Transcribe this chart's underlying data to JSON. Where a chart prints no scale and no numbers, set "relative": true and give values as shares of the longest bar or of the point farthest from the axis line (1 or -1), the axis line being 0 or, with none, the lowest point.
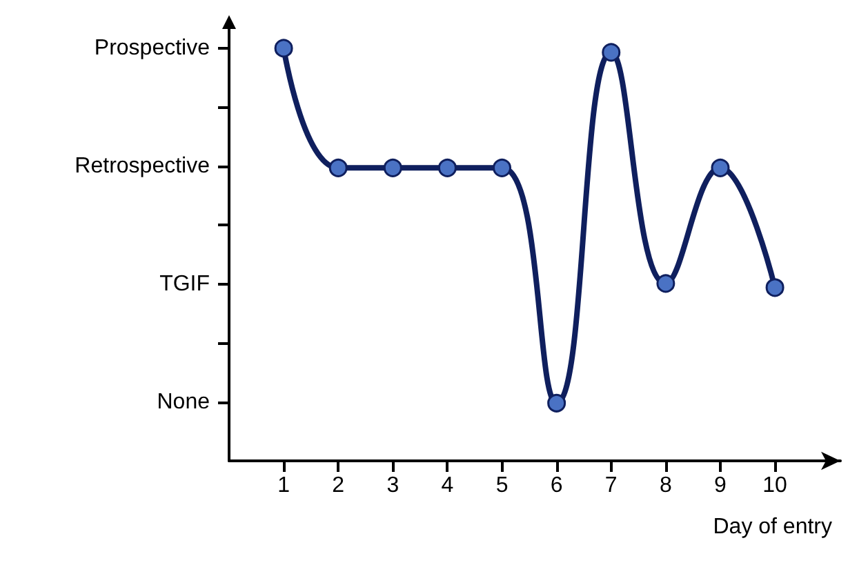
{
  "chart_data": {
    "type": "line",
    "xlabel": "Day of entry",
    "relative": true,
    "x": [
      1,
      2,
      3,
      4,
      5,
      6,
      7,
      8,
      9,
      10
    ],
    "series": [
      {
        "color": "#0f1f5e",
        "values": [
          1,
          0.71,
          0.71,
          0.71,
          0.71,
          0.14,
          0.99,
          0.43,
          0.71,
          0.42
        ]
      }
    ],
    "annotations": [
      "Prospective",
      "Retrospective",
      "TGIF",
      "None"
    ],
    "xlim": [
      0,
      11.2
    ],
    "xticks": [
      1,
      2,
      3,
      4,
      5,
      6,
      7,
      8,
      9,
      10
    ],
    "marker": "circle",
    "line_style": "solid"
  }
}
